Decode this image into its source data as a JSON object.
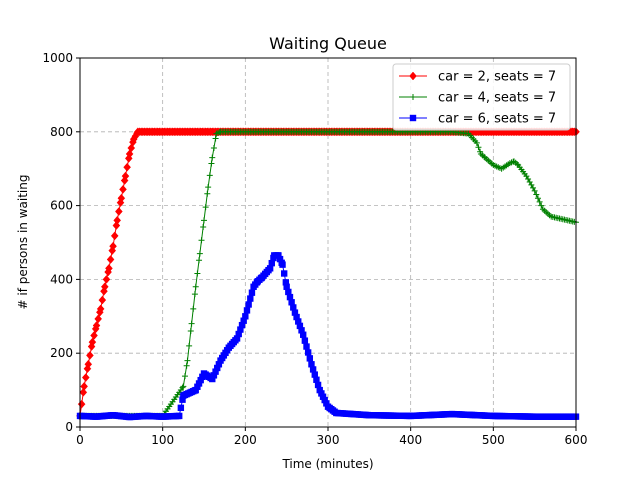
{
  "chart_data": {
    "type": "line",
    "title": "Waiting Queue",
    "xlabel": "Time (minutes)",
    "ylabel": "# if persons in waiting",
    "xlim": [
      0,
      600
    ],
    "ylim": [
      0,
      1000
    ],
    "xticks": [
      "0",
      "100",
      "200",
      "300",
      "400",
      "500",
      "600"
    ],
    "yticks": [
      "0",
      "200",
      "400",
      "600",
      "800",
      "1000"
    ],
    "grid": true,
    "legend_position": "top-right",
    "series": [
      {
        "name": "car = 2, seats = 7",
        "color": "#ff0000",
        "marker": "diamond",
        "x": [
          0,
          5,
          10,
          15,
          20,
          25,
          30,
          35,
          40,
          45,
          50,
          55,
          60,
          65,
          70,
          80,
          100,
          150,
          200,
          250,
          300,
          350,
          400,
          450,
          500,
          550,
          600
        ],
        "y": [
          30,
          110,
          170,
          230,
          275,
          320,
          380,
          430,
          490,
          560,
          620,
          680,
          740,
          780,
          800,
          800,
          800,
          800,
          800,
          800,
          800,
          800,
          800,
          800,
          800,
          800,
          800
        ]
      },
      {
        "name": "car = 4, seats = 7",
        "color": "#008000",
        "marker": "plus",
        "x": [
          0,
          50,
          100,
          125,
          130,
          135,
          140,
          145,
          150,
          155,
          160,
          165,
          170,
          200,
          250,
          300,
          350,
          400,
          450,
          470,
          480,
          485,
          490,
          500,
          510,
          520,
          525,
          530,
          540,
          550,
          560,
          570,
          580,
          590,
          600
        ],
        "y": [
          30,
          30,
          30,
          110,
          180,
          280,
          380,
          470,
          560,
          650,
          730,
          795,
          800,
          800,
          800,
          800,
          800,
          800,
          800,
          795,
          770,
          740,
          730,
          710,
          700,
          715,
          720,
          710,
          680,
          640,
          590,
          570,
          565,
          560,
          555
        ]
      },
      {
        "name": "car = 6, seats = 7",
        "color": "#0000ff",
        "marker": "square",
        "x": [
          0,
          20,
          40,
          60,
          80,
          100,
          120,
          125,
          140,
          150,
          160,
          170,
          180,
          190,
          200,
          210,
          215,
          220,
          230,
          235,
          240,
          245,
          250,
          260,
          270,
          280,
          290,
          300,
          310,
          330,
          350,
          400,
          450,
          500,
          550,
          600
        ],
        "y": [
          30,
          28,
          32,
          27,
          30,
          28,
          30,
          85,
          100,
          145,
          130,
          180,
          215,
          240,
          300,
          380,
          395,
          405,
          430,
          465,
          465,
          440,
          380,
          310,
          250,
          170,
          100,
          55,
          38,
          35,
          32,
          30,
          35,
          30,
          28,
          28
        ]
      }
    ]
  }
}
